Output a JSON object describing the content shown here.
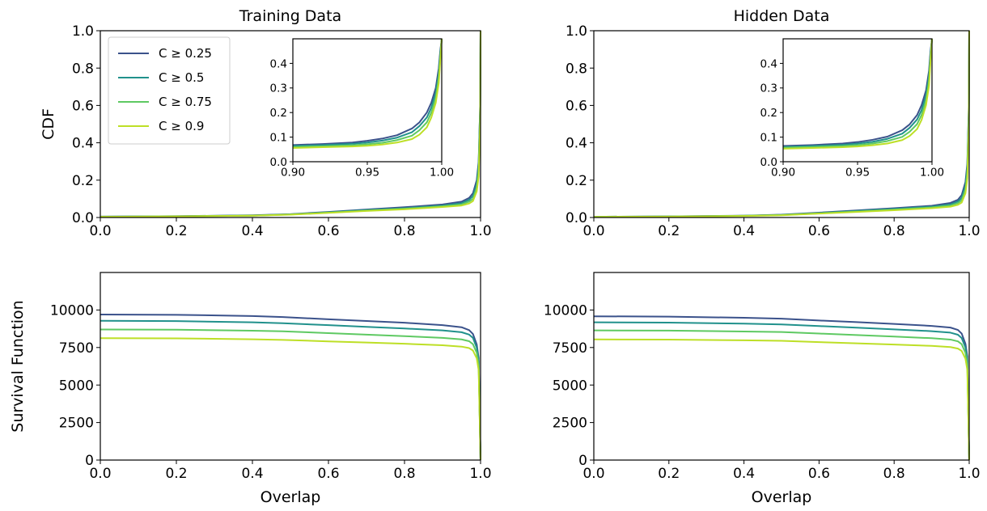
{
  "colors": {
    "C >= 0.25": "#3b528b",
    "C >= 0.5": "#21918c",
    "C >= 0.75": "#5ec962",
    "C >= 0.9": "#bddf26"
  },
  "legend": {
    "location": "upper-left",
    "entries": [
      "C ≥ 0.25",
      "C ≥ 0.5",
      "C ≥ 0.75",
      "C ≥ 0.9"
    ]
  },
  "chart_data": [
    {
      "id": "train-cdf",
      "type": "line",
      "title": "Training Data",
      "xlabel": "",
      "ylabel": "CDF",
      "xlim": [
        0,
        1
      ],
      "ylim": [
        0,
        1
      ],
      "xticks": [
        "0.0",
        "0.2",
        "0.4",
        "0.6",
        "0.8",
        "1.0"
      ],
      "yticks": [
        "0.0",
        "0.2",
        "0.4",
        "0.6",
        "0.8",
        "1.0"
      ],
      "legend": true,
      "series": [
        {
          "name": "C ≥ 0.25",
          "x": [
            0,
            0.2,
            0.4,
            0.5,
            0.6,
            0.7,
            0.8,
            0.9,
            0.95,
            0.97,
            0.98,
            0.99,
            0.995,
            0.999,
            1.0
          ],
          "y": [
            0.005,
            0.007,
            0.012,
            0.018,
            0.03,
            0.043,
            0.055,
            0.07,
            0.085,
            0.105,
            0.13,
            0.2,
            0.3,
            0.6,
            1.0
          ]
        },
        {
          "name": "C ≥ 0.5",
          "x": [
            0,
            0.2,
            0.4,
            0.5,
            0.6,
            0.7,
            0.8,
            0.9,
            0.95,
            0.97,
            0.98,
            0.99,
            0.995,
            0.999,
            1.0
          ],
          "y": [
            0.005,
            0.007,
            0.011,
            0.017,
            0.028,
            0.04,
            0.05,
            0.064,
            0.077,
            0.095,
            0.115,
            0.18,
            0.28,
            0.6,
            1.0
          ]
        },
        {
          "name": "C ≥ 0.75",
          "x": [
            0,
            0.2,
            0.4,
            0.5,
            0.6,
            0.7,
            0.8,
            0.9,
            0.95,
            0.97,
            0.98,
            0.99,
            0.995,
            0.999,
            1.0
          ],
          "y": [
            0.004,
            0.006,
            0.01,
            0.016,
            0.026,
            0.037,
            0.047,
            0.06,
            0.07,
            0.085,
            0.1,
            0.16,
            0.25,
            0.55,
            1.0
          ]
        },
        {
          "name": "C ≥ 0.9",
          "x": [
            0,
            0.2,
            0.4,
            0.5,
            0.6,
            0.7,
            0.8,
            0.9,
            0.95,
            0.97,
            0.98,
            0.99,
            0.995,
            0.999,
            1.0
          ],
          "y": [
            0.004,
            0.006,
            0.01,
            0.015,
            0.025,
            0.035,
            0.044,
            0.056,
            0.064,
            0.075,
            0.088,
            0.14,
            0.22,
            0.5,
            1.0
          ]
        }
      ]
    },
    {
      "id": "train-cdf-inset",
      "type": "line",
      "title": "",
      "xlim": [
        0.9,
        1.0
      ],
      "ylim": [
        0,
        0.5
      ],
      "xticks": [
        "0.90",
        "0.95",
        "1.00"
      ],
      "yticks": [
        "0.0",
        "0.1",
        "0.2",
        "0.3",
        "0.4"
      ],
      "series": [
        {
          "name": "C ≥ 0.25",
          "x": [
            0.9,
            0.92,
            0.94,
            0.95,
            0.96,
            0.97,
            0.98,
            0.985,
            0.99,
            0.993,
            0.996,
            0.998,
            0.999,
            1.0
          ],
          "y": [
            0.068,
            0.072,
            0.078,
            0.085,
            0.094,
            0.108,
            0.135,
            0.16,
            0.2,
            0.24,
            0.3,
            0.38,
            0.45,
            0.5
          ]
        },
        {
          "name": "C ≥ 0.5",
          "x": [
            0.9,
            0.92,
            0.94,
            0.95,
            0.96,
            0.97,
            0.98,
            0.985,
            0.99,
            0.993,
            0.996,
            0.998,
            0.999,
            1.0
          ],
          "y": [
            0.064,
            0.068,
            0.073,
            0.078,
            0.086,
            0.098,
            0.12,
            0.145,
            0.18,
            0.22,
            0.28,
            0.36,
            0.44,
            0.5
          ]
        },
        {
          "name": "C ≥ 0.75",
          "x": [
            0.9,
            0.92,
            0.94,
            0.95,
            0.96,
            0.97,
            0.98,
            0.985,
            0.99,
            0.993,
            0.996,
            0.998,
            0.999,
            1.0
          ],
          "y": [
            0.06,
            0.063,
            0.067,
            0.071,
            0.077,
            0.088,
            0.106,
            0.128,
            0.16,
            0.2,
            0.26,
            0.34,
            0.42,
            0.5
          ]
        },
        {
          "name": "C ≥ 0.9",
          "x": [
            0.9,
            0.92,
            0.94,
            0.95,
            0.96,
            0.97,
            0.98,
            0.985,
            0.99,
            0.993,
            0.996,
            0.998,
            0.999,
            1.0
          ],
          "y": [
            0.056,
            0.059,
            0.062,
            0.065,
            0.07,
            0.078,
            0.092,
            0.11,
            0.14,
            0.18,
            0.24,
            0.32,
            0.41,
            0.5
          ]
        }
      ]
    },
    {
      "id": "hidden-cdf",
      "type": "line",
      "title": "Hidden Data",
      "xlabel": "",
      "ylabel": "",
      "xlim": [
        0,
        1
      ],
      "ylim": [
        0,
        1
      ],
      "xticks": [
        "0.0",
        "0.2",
        "0.4",
        "0.6",
        "0.8",
        "1.0"
      ],
      "yticks": [
        "0.0",
        "0.2",
        "0.4",
        "0.6",
        "0.8",
        "1.0"
      ],
      "legend": false,
      "series": [
        {
          "name": "C ≥ 0.25",
          "x": [
            0,
            0.2,
            0.4,
            0.5,
            0.6,
            0.7,
            0.8,
            0.9,
            0.95,
            0.97,
            0.98,
            0.99,
            0.995,
            0.999,
            1.0
          ],
          "y": [
            0.004,
            0.006,
            0.01,
            0.015,
            0.026,
            0.038,
            0.05,
            0.063,
            0.078,
            0.095,
            0.12,
            0.19,
            0.29,
            0.6,
            1.0
          ]
        },
        {
          "name": "C ≥ 0.5",
          "x": [
            0,
            0.2,
            0.4,
            0.5,
            0.6,
            0.7,
            0.8,
            0.9,
            0.95,
            0.97,
            0.98,
            0.99,
            0.995,
            0.999,
            1.0
          ],
          "y": [
            0.004,
            0.006,
            0.009,
            0.014,
            0.024,
            0.035,
            0.046,
            0.058,
            0.07,
            0.086,
            0.105,
            0.17,
            0.27,
            0.58,
            1.0
          ]
        },
        {
          "name": "C ≥ 0.75",
          "x": [
            0,
            0.2,
            0.4,
            0.5,
            0.6,
            0.7,
            0.8,
            0.9,
            0.95,
            0.97,
            0.98,
            0.99,
            0.995,
            0.999,
            1.0
          ],
          "y": [
            0.004,
            0.005,
            0.009,
            0.013,
            0.022,
            0.032,
            0.042,
            0.054,
            0.064,
            0.077,
            0.092,
            0.15,
            0.24,
            0.54,
            1.0
          ]
        },
        {
          "name": "C ≥ 0.9",
          "x": [
            0,
            0.2,
            0.4,
            0.5,
            0.6,
            0.7,
            0.8,
            0.9,
            0.95,
            0.97,
            0.98,
            0.99,
            0.995,
            0.999,
            1.0
          ],
          "y": [
            0.003,
            0.005,
            0.008,
            0.012,
            0.021,
            0.03,
            0.039,
            0.05,
            0.058,
            0.068,
            0.08,
            0.13,
            0.21,
            0.5,
            1.0
          ]
        }
      ]
    },
    {
      "id": "hidden-cdf-inset",
      "type": "line",
      "title": "",
      "xlim": [
        0.9,
        1.0
      ],
      "ylim": [
        0,
        0.5
      ],
      "xticks": [
        "0.90",
        "0.95",
        "1.00"
      ],
      "yticks": [
        "0.0",
        "0.1",
        "0.2",
        "0.3",
        "0.4"
      ],
      "series": [
        {
          "name": "C ≥ 0.25",
          "x": [
            0.9,
            0.92,
            0.94,
            0.95,
            0.96,
            0.97,
            0.98,
            0.985,
            0.99,
            0.993,
            0.996,
            0.998,
            0.999,
            1.0
          ],
          "y": [
            0.064,
            0.068,
            0.074,
            0.08,
            0.089,
            0.102,
            0.128,
            0.152,
            0.19,
            0.23,
            0.29,
            0.37,
            0.45,
            0.5
          ]
        },
        {
          "name": "C ≥ 0.5",
          "x": [
            0.9,
            0.92,
            0.94,
            0.95,
            0.96,
            0.97,
            0.98,
            0.985,
            0.99,
            0.993,
            0.996,
            0.998,
            0.999,
            1.0
          ],
          "y": [
            0.06,
            0.064,
            0.069,
            0.074,
            0.081,
            0.093,
            0.114,
            0.138,
            0.172,
            0.21,
            0.27,
            0.35,
            0.44,
            0.5
          ]
        },
        {
          "name": "C ≥ 0.75",
          "x": [
            0.9,
            0.92,
            0.94,
            0.95,
            0.96,
            0.97,
            0.98,
            0.985,
            0.99,
            0.993,
            0.996,
            0.998,
            0.999,
            1.0
          ],
          "y": [
            0.057,
            0.06,
            0.064,
            0.068,
            0.074,
            0.084,
            0.101,
            0.122,
            0.153,
            0.19,
            0.25,
            0.33,
            0.42,
            0.5
          ]
        },
        {
          "name": "C ≥ 0.9",
          "x": [
            0.9,
            0.92,
            0.94,
            0.95,
            0.96,
            0.97,
            0.98,
            0.985,
            0.99,
            0.993,
            0.996,
            0.998,
            0.999,
            1.0
          ],
          "y": [
            0.053,
            0.056,
            0.059,
            0.062,
            0.067,
            0.074,
            0.088,
            0.105,
            0.133,
            0.17,
            0.23,
            0.31,
            0.41,
            0.5
          ]
        }
      ]
    },
    {
      "id": "train-survival",
      "type": "line",
      "title": "",
      "xlabel": "Overlap",
      "ylabel": "Survival Function",
      "xlim": [
        0,
        1
      ],
      "ylim": [
        0,
        12500
      ],
      "xticks": [
        "0.0",
        "0.2",
        "0.4",
        "0.6",
        "0.8",
        "1.0"
      ],
      "yticks": [
        "0",
        "2500",
        "5000",
        "7500",
        "10000"
      ],
      "legend": false,
      "series": [
        {
          "name": "C ≥ 0.25",
          "x": [
            0,
            0.2,
            0.4,
            0.48,
            0.6,
            0.7,
            0.8,
            0.9,
            0.95,
            0.97,
            0.98,
            0.99,
            0.995,
            1.0
          ],
          "y": [
            9700,
            9680,
            9600,
            9530,
            9380,
            9270,
            9150,
            8990,
            8850,
            8660,
            8400,
            7700,
            6800,
            0
          ]
        },
        {
          "name": "C ≥ 0.5",
          "x": [
            0,
            0.2,
            0.4,
            0.48,
            0.6,
            0.7,
            0.8,
            0.9,
            0.95,
            0.97,
            0.98,
            0.99,
            0.995,
            1.0
          ],
          "y": [
            9280,
            9260,
            9180,
            9120,
            8990,
            8880,
            8770,
            8640,
            8520,
            8360,
            8140,
            7480,
            6600,
            0
          ]
        },
        {
          "name": "C ≥ 0.75",
          "x": [
            0,
            0.2,
            0.4,
            0.48,
            0.6,
            0.7,
            0.8,
            0.9,
            0.95,
            0.97,
            0.98,
            0.99,
            0.995,
            1.0
          ],
          "y": [
            8700,
            8690,
            8620,
            8580,
            8460,
            8360,
            8260,
            8140,
            8040,
            7920,
            7720,
            7150,
            6300,
            0
          ]
        },
        {
          "name": "C ≥ 0.9",
          "x": [
            0,
            0.2,
            0.4,
            0.48,
            0.6,
            0.7,
            0.8,
            0.9,
            0.95,
            0.97,
            0.98,
            0.99,
            0.995,
            1.0
          ],
          "y": [
            8120,
            8110,
            8050,
            8010,
            7910,
            7830,
            7750,
            7650,
            7560,
            7460,
            7300,
            6780,
            6000,
            0
          ]
        }
      ]
    },
    {
      "id": "hidden-survival",
      "type": "line",
      "title": "",
      "xlabel": "Overlap",
      "ylabel": "",
      "xlim": [
        0,
        1
      ],
      "ylim": [
        0,
        12500
      ],
      "xticks": [
        "0.0",
        "0.2",
        "0.4",
        "0.6",
        "0.8",
        "1.0"
      ],
      "yticks": [
        "0",
        "2500",
        "5000",
        "7500",
        "10000"
      ],
      "legend": false,
      "series": [
        {
          "name": "C ≥ 0.25",
          "x": [
            0,
            0.2,
            0.4,
            0.5,
            0.6,
            0.7,
            0.8,
            0.9,
            0.95,
            0.97,
            0.98,
            0.99,
            0.995,
            1.0
          ],
          "y": [
            9580,
            9560,
            9480,
            9420,
            9300,
            9190,
            9070,
            8940,
            8830,
            8670,
            8430,
            7750,
            6900,
            0
          ]
        },
        {
          "name": "C ≥ 0.5",
          "x": [
            0,
            0.2,
            0.4,
            0.5,
            0.6,
            0.7,
            0.8,
            0.9,
            0.95,
            0.97,
            0.98,
            0.99,
            0.995,
            1.0
          ],
          "y": [
            9180,
            9160,
            9090,
            9040,
            8930,
            8820,
            8710,
            8590,
            8490,
            8350,
            8130,
            7500,
            6650,
            0
          ]
        },
        {
          "name": "C ≥ 0.75",
          "x": [
            0,
            0.2,
            0.4,
            0.5,
            0.6,
            0.7,
            0.8,
            0.9,
            0.95,
            0.97,
            0.98,
            0.99,
            0.995,
            1.0
          ],
          "y": [
            8640,
            8630,
            8570,
            8530,
            8430,
            8330,
            8230,
            8120,
            8030,
            7910,
            7720,
            7150,
            6350,
            0
          ]
        },
        {
          "name": "C ≥ 0.9",
          "x": [
            0,
            0.2,
            0.4,
            0.5,
            0.6,
            0.7,
            0.8,
            0.9,
            0.95,
            0.97,
            0.98,
            0.99,
            0.995,
            1.0
          ],
          "y": [
            8040,
            8030,
            7980,
            7950,
            7860,
            7780,
            7700,
            7610,
            7530,
            7430,
            7270,
            6760,
            6000,
            0
          ]
        }
      ]
    }
  ]
}
